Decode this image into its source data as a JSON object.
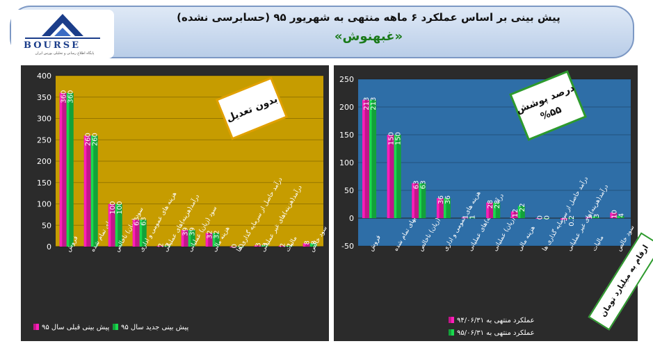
{
  "header": {
    "title": "پیش بینی بر اساس عملکرد ۶ ماهه منتهی به شهریور ۹۵ (حسابرسی نشده)",
    "subtitle": "«غبهنوش»",
    "logo_text": "BOURSE",
    "logo_sub": "پایگاه اطلاع رسانی و تحلیلی بورس ایران"
  },
  "units_label": "ارقام به میلیارد تومان",
  "colors": {
    "pink": "#c2168a",
    "green": "#13a13a",
    "left_bg": "#c69c00",
    "right_bg": "#2e6ea7",
    "outer_bg": "#2b2b2b"
  },
  "chart_data": [
    {
      "type": "bar",
      "badge": "بدون تعدیل",
      "categories": [
        "فروش",
        "بهای تمام شده",
        "سود (زیان) ناخالص",
        "هزینه های عمومی و اداری",
        "درآمد(هزینه)های عملیاتی",
        "سود (زیان) عملیاتی",
        "هزینه مالی",
        "درآمد حاصل از سرمایه گذاری ها",
        "درآمد(هزینه)های غیر عملیاتی",
        "مالیات",
        "سود خالص"
      ],
      "series": [
        {
          "name": "پیش بینی قبلی سال ۹۵",
          "values": [
            360,
            260,
            100,
            63,
            2,
            39,
            32,
            0,
            3,
            2,
            8
          ]
        },
        {
          "name": "پیش بینی جدید سال ۹۵",
          "values": [
            360,
            260,
            100,
            63,
            2,
            39,
            32,
            0,
            3,
            2,
            8
          ]
        }
      ],
      "ylim": [
        0,
        400
      ],
      "yticks": [
        0,
        50,
        100,
        150,
        200,
        250,
        300,
        350,
        400
      ],
      "legend_position": "bottom"
    },
    {
      "type": "bar",
      "badge": "درصد پوشش\n%۵۵",
      "categories": [
        "فروش",
        "بهای تمام شده",
        "سود (زیان) ناخالص",
        "هزینه های عمومی و اداری",
        "درآمد(هزینه)های عملیاتی",
        "سود (زیان) عملیاتی",
        "هزینه مالی",
        "درآمد حاصل از سرمایه گذاری ها",
        "درآمد(هزینه)های غیر عملیاتی",
        "مالیات",
        "سود خالص"
      ],
      "series": [
        {
          "name": "عملکرد منتهی به ۹۴/۰۶/۳۱",
          "values": [
            213,
            150,
            63,
            36,
            1,
            28,
            12,
            0,
            -3,
            1,
            10
          ]
        },
        {
          "name": "عملکرد منتهی به ۹۵/۰۶/۳۱",
          "values": [
            213,
            150,
            63,
            36,
            1,
            28,
            22,
            0,
            0.2,
            3,
            4
          ]
        }
      ],
      "ylim": [
        -50,
        250
      ],
      "yticks": [
        -50,
        0,
        50,
        100,
        150,
        200,
        250
      ],
      "legend_position": "bottom"
    }
  ]
}
